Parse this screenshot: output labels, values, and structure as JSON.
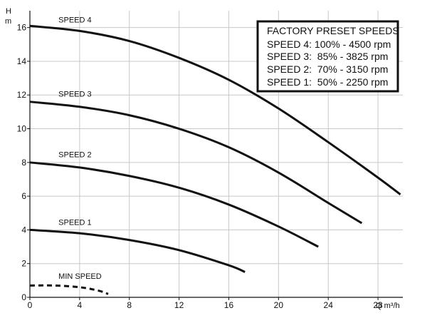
{
  "chart_data": {
    "type": "line",
    "title": "",
    "xlabel": "Q m³/h",
    "ylabel_top": "H",
    "ylabel_bottom": "m",
    "xlim": [
      0,
      30
    ],
    "ylim": [
      0,
      17
    ],
    "x_ticks": [
      0,
      4,
      8,
      12,
      16,
      20,
      24,
      28
    ],
    "x_tick_labels": [
      "0",
      "4",
      "8",
      "12",
      "16",
      "20",
      "24",
      "28"
    ],
    "y_ticks": [
      0,
      2,
      4,
      6,
      8,
      10,
      12,
      14,
      16
    ],
    "y_tick_labels": [
      "0",
      "2",
      "4",
      "6",
      "8",
      "10",
      "12",
      "14",
      "16"
    ],
    "grid": true,
    "legend": {
      "placement": "top-right",
      "title": "FACTORY PRESET SPEEDS",
      "entries": [
        "SPEED 4: 100% - 4500 rpm",
        "SPEED 3:  85% - 3825 rpm",
        "SPEED 2:  70% - 3150 rpm",
        "SPEED 1:  50% - 2250 rpm"
      ]
    },
    "series": [
      {
        "name": "SPEED 4",
        "style": "solid",
        "points": [
          [
            0,
            16.1
          ],
          [
            4,
            15.8
          ],
          [
            8,
            15.2
          ],
          [
            12,
            14.2
          ],
          [
            16,
            12.9
          ],
          [
            20,
            11.2
          ],
          [
            24,
            9.2
          ],
          [
            28,
            7.1
          ],
          [
            29.8,
            6.1
          ]
        ]
      },
      {
        "name": "SPEED 3",
        "style": "solid",
        "points": [
          [
            0,
            11.6
          ],
          [
            4,
            11.3
          ],
          [
            8,
            10.8
          ],
          [
            12,
            10.0
          ],
          [
            16,
            8.9
          ],
          [
            20,
            7.4
          ],
          [
            24,
            5.6
          ],
          [
            26.7,
            4.4
          ]
        ]
      },
      {
        "name": "SPEED 2",
        "style": "solid",
        "points": [
          [
            0,
            8.0
          ],
          [
            4,
            7.7
          ],
          [
            8,
            7.2
          ],
          [
            12,
            6.5
          ],
          [
            16,
            5.5
          ],
          [
            20,
            4.2
          ],
          [
            23.2,
            3.0
          ]
        ]
      },
      {
        "name": "SPEED 1",
        "style": "solid",
        "points": [
          [
            0,
            4.0
          ],
          [
            4,
            3.8
          ],
          [
            8,
            3.4
          ],
          [
            12,
            2.8
          ],
          [
            16,
            1.9
          ],
          [
            17.3,
            1.5
          ]
        ]
      },
      {
        "name": "MIN SPEED",
        "style": "dashed",
        "points": [
          [
            0,
            0.7
          ],
          [
            2,
            0.7
          ],
          [
            4,
            0.6
          ],
          [
            5.5,
            0.4
          ],
          [
            6.3,
            0.2
          ]
        ]
      }
    ],
    "series_labels": [
      {
        "text": "SPEED 4",
        "x": 2.3,
        "y": 16.3
      },
      {
        "text": "SPEED 3",
        "x": 2.3,
        "y": 11.9
      },
      {
        "text": "SPEED 2",
        "x": 2.3,
        "y": 8.3
      },
      {
        "text": "SPEED 1",
        "x": 2.3,
        "y": 4.3
      },
      {
        "text": "MIN SPEED",
        "x": 2.3,
        "y": 1.1
      }
    ]
  }
}
